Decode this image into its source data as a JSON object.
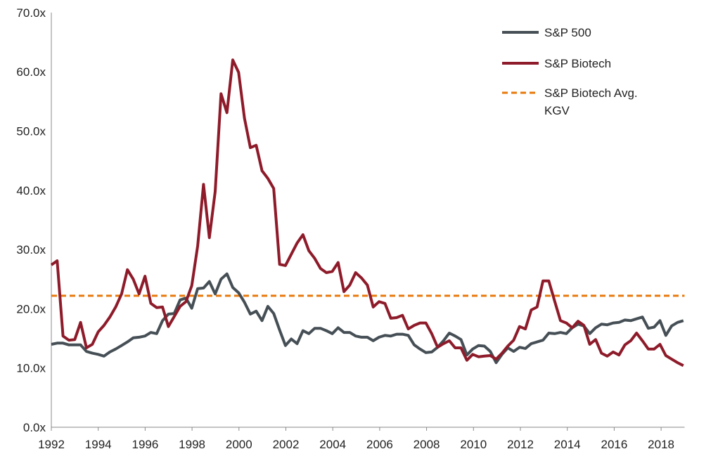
{
  "chart_data": {
    "type": "line",
    "title": "",
    "xlabel": "",
    "ylabel": "",
    "ylim": [
      0,
      70
    ],
    "xlim": [
      1992,
      2019
    ],
    "y_ticks": [
      "0.0x",
      "10.0x",
      "20.0x",
      "30.0x",
      "40.0x",
      "50.0x",
      "60.0x",
      "70.0x"
    ],
    "y_tick_values": [
      0,
      10,
      20,
      30,
      40,
      50,
      60,
      70
    ],
    "x_ticks": [
      "1992",
      "1994",
      "1996",
      "1998",
      "2000",
      "2002",
      "2004",
      "2006",
      "2008",
      "2010",
      "2012",
      "2014",
      "2016",
      "2018"
    ],
    "x_tick_values": [
      1992,
      1994,
      1996,
      1998,
      2000,
      2002,
      2004,
      2006,
      2008,
      2010,
      2012,
      2014,
      2016,
      2018
    ],
    "legend_position": "top-right",
    "x_start": 1992.0,
    "x_end": 2018.95,
    "series": [
      {
        "name": "S&P 500",
        "color": "#454f55",
        "style": "solid",
        "values": [
          14.0,
          14.2,
          14.2,
          13.9,
          13.9,
          13.9,
          12.8,
          12.5,
          12.3,
          12.0,
          12.7,
          13.2,
          13.8,
          14.4,
          15.1,
          15.2,
          15.4,
          16.0,
          15.8,
          18.0,
          19.1,
          19.2,
          21.5,
          21.8,
          20.1,
          23.4,
          23.5,
          24.6,
          22.5,
          25.0,
          25.9,
          23.6,
          22.7,
          21.1,
          19.1,
          19.6,
          18.0,
          20.4,
          19.2,
          16.4,
          13.8,
          14.9,
          14.1,
          16.3,
          15.8,
          16.7,
          16.7,
          16.3,
          15.8,
          16.8,
          16.0,
          16.0,
          15.4,
          15.2,
          15.2,
          14.6,
          15.2,
          15.5,
          15.4,
          15.7,
          15.7,
          15.5,
          13.9,
          13.2,
          12.6,
          12.7,
          13.5,
          14.6,
          15.9,
          15.4,
          14.8,
          12.2,
          13.2,
          13.8,
          13.7,
          12.8,
          10.9,
          12.3,
          13.4,
          12.8,
          13.5,
          13.3,
          14.1,
          14.4,
          14.7,
          15.9,
          15.8,
          16.0,
          15.8,
          16.8,
          17.4,
          17.1,
          15.8,
          16.8,
          17.4,
          17.3,
          17.6,
          17.7,
          18.1,
          18.0,
          18.3,
          18.6,
          16.7,
          16.9,
          18.0,
          15.5,
          17.1,
          17.7,
          18.0
        ]
      },
      {
        "name": "S&P Biotech",
        "color": "#8e1b2a",
        "style": "solid",
        "values": [
          27.4,
          28.1,
          15.4,
          14.7,
          14.8,
          17.7,
          13.4,
          14.0,
          16.1,
          17.2,
          18.6,
          20.3,
          22.5,
          26.6,
          25.0,
          22.5,
          25.5,
          20.9,
          20.2,
          20.3,
          17.0,
          18.7,
          20.4,
          21.2,
          23.9,
          30.6,
          41.0,
          32.0,
          39.8,
          56.3,
          53.1,
          62.0,
          59.9,
          52.2,
          47.2,
          47.6,
          43.3,
          42.0,
          40.3,
          27.5,
          27.3,
          29.2,
          31.1,
          32.5,
          29.8,
          28.5,
          26.8,
          26.1,
          26.3,
          27.8,
          22.9,
          24.0,
          26.1,
          25.2,
          24.0,
          20.3,
          21.2,
          20.9,
          18.4,
          18.5,
          18.9,
          16.6,
          17.2,
          17.6,
          17.6,
          15.8,
          13.5,
          14.1,
          14.6,
          13.4,
          13.4,
          11.3,
          12.3,
          11.9,
          12.0,
          12.1,
          11.5,
          12.5,
          13.7,
          14.7,
          17.0,
          16.6,
          19.8,
          20.3,
          24.7,
          24.7,
          21.3,
          18.0,
          17.6,
          16.8,
          17.9,
          17.2,
          14.0,
          14.8,
          12.5,
          12.0,
          12.7,
          12.2,
          13.9,
          14.6,
          15.9,
          14.6,
          13.2,
          13.2,
          14.0,
          12.1,
          11.5,
          10.9,
          10.4
        ]
      },
      {
        "name": "S&P Biotech Avg. KGV",
        "name_lines": [
          "S&P Biotech Avg.",
          "KGV"
        ],
        "color": "#e8790c",
        "style": "dashed",
        "value": 22.2
      }
    ]
  }
}
